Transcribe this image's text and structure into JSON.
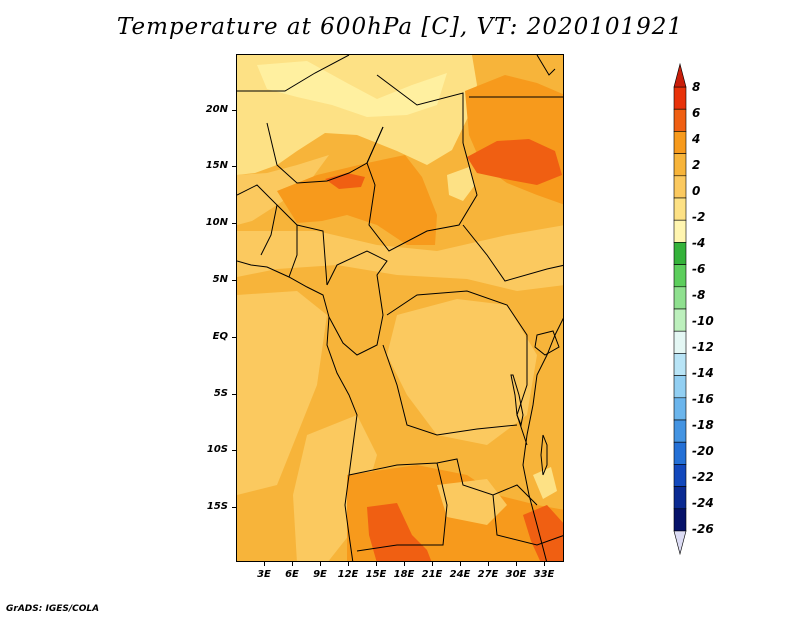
{
  "title": "Temperature at 600hPa [C], VT: 2020101921",
  "credit": "GrADS: IGES/COLA",
  "map": {
    "lat_labels": [
      "20N",
      "15N",
      "10N",
      "5N",
      "EQ",
      "5S",
      "10S",
      "15S"
    ],
    "lat_values": [
      20,
      15,
      10,
      5,
      0,
      -5,
      -10,
      -15
    ],
    "lon_labels": [
      "3E",
      "6E",
      "9E",
      "12E",
      "15E",
      "18E",
      "21E",
      "24E",
      "27E",
      "30E",
      "33E"
    ],
    "lon_values": [
      3,
      6,
      9,
      12,
      15,
      18,
      21,
      24,
      27,
      30,
      33
    ],
    "lat_range": [
      -20,
      24.5
    ],
    "lon_range": [
      0,
      35
    ],
    "colors": {
      "band_2_4": "#f7b43a",
      "band_0_2": "#fbc95f",
      "band_4_6": "#f79a1c",
      "band_6_8": "#f05f12",
      "band_m2_0": "#fde185",
      "outline": "#000000"
    }
  },
  "colorbar": {
    "labels": [
      "8",
      "6",
      "4",
      "2",
      "0",
      "-2",
      "-4",
      "-6",
      "-8",
      "-10",
      "-12",
      "-14",
      "-16",
      "-18",
      "-20",
      "-22",
      "-24",
      "-26"
    ],
    "colors": [
      "#e8320a",
      "#f05f12",
      "#f79a1c",
      "#f7b43a",
      "#fbc95f",
      "#fde185",
      "#fff5b0",
      "#34b23a",
      "#5cce5c",
      "#8fe08f",
      "#bdf0bd",
      "#e4f7f4",
      "#b8e4f6",
      "#92cff2",
      "#6bb5ec",
      "#4494e2",
      "#2470d6",
      "#1248bc",
      "#0a2a92",
      "#06126a"
    ],
    "top_arrow_color": "#c81e0a",
    "bottom_arrow_color": "#dcdcf4"
  }
}
